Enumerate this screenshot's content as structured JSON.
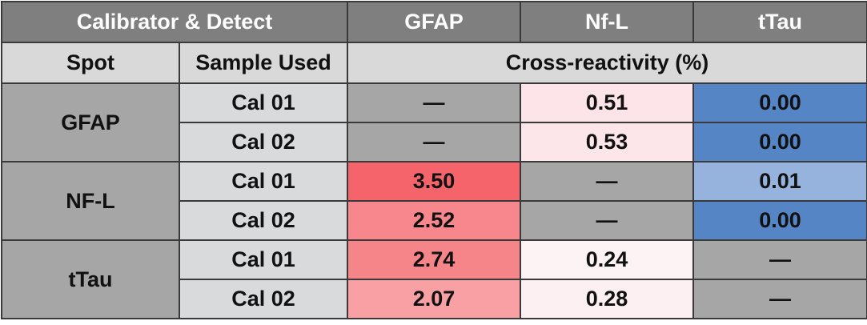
{
  "header": {
    "row1": [
      "Calibrator & Detect",
      "GFAP",
      "Nf-L",
      "tTau"
    ],
    "row2": [
      "Spot",
      "Sample Used",
      "Cross-reactivity (%)"
    ]
  },
  "groups": [
    {
      "spot": "GFAP",
      "rows": [
        {
          "sample": "Cal 01",
          "values": [
            "—",
            "0.51",
            "0.00"
          ]
        },
        {
          "sample": "Cal 02",
          "values": [
            "—",
            "0.53",
            "0.00"
          ]
        }
      ]
    },
    {
      "spot": "NF-L",
      "rows": [
        {
          "sample": "Cal 01",
          "values": [
            "3.50",
            "—",
            "0.01"
          ]
        },
        {
          "sample": "Cal 02",
          "values": [
            "2.52",
            "—",
            "0.00"
          ]
        }
      ]
    },
    {
      "spot": "tTau",
      "rows": [
        {
          "sample": "Cal 01",
          "values": [
            "2.74",
            "0.24",
            "—"
          ]
        },
        {
          "sample": "Cal 02",
          "values": [
            "2.07",
            "0.28",
            "—"
          ]
        }
      ]
    }
  ]
}
